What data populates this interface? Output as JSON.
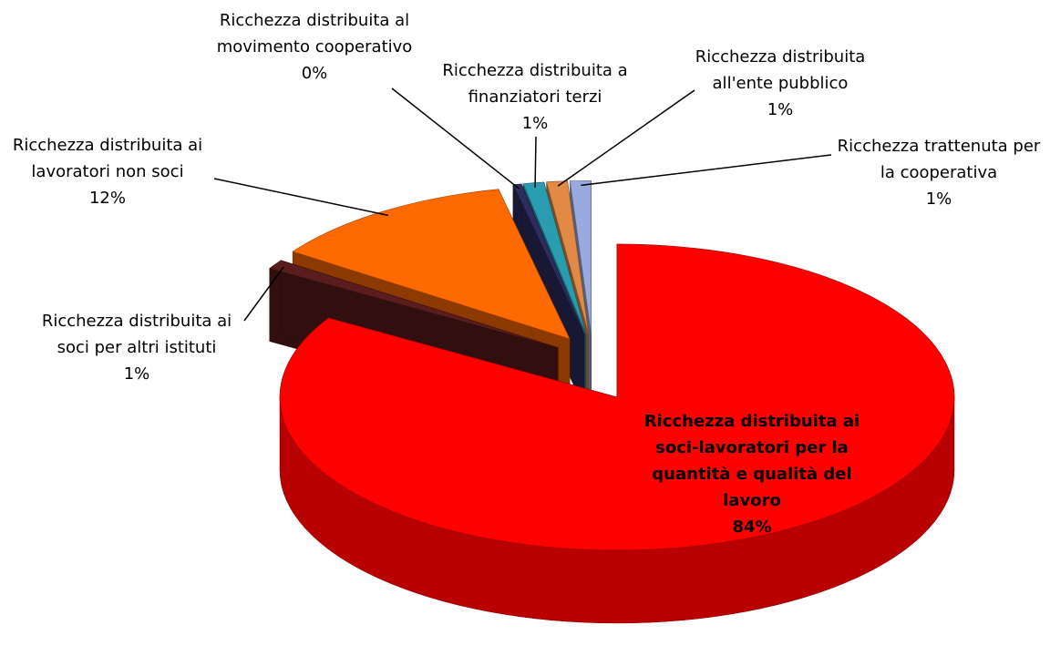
{
  "chart_data": {
    "type": "pie",
    "categories": [
      "Ricchezza distribuita ai soci-lavoratori per la quantità e qualità del lavoro",
      "Ricchezza distribuita ai soci per altri istituti",
      "Ricchezza distribuita ai lavoratori non soci",
      "Ricchezza distribuita al movimento cooperativo",
      "Ricchezza distribuita a finanziatori terzi",
      "Ricchezza distribuita all'ente pubblico",
      "Ricchezza trattenuta per la cooperativa"
    ],
    "values": [
      84,
      1,
      12,
      0.4,
      1,
      1,
      1
    ],
    "value_labels": [
      "84%",
      "1%",
      "12%",
      "0%",
      "1%",
      "1%",
      "1%"
    ],
    "colors": [
      "#ff0000",
      "#5a1c1c",
      "#ff6a00",
      "#2c2c5e",
      "#2a9cb0",
      "#e28a45",
      "#9aaadc"
    ]
  }
}
